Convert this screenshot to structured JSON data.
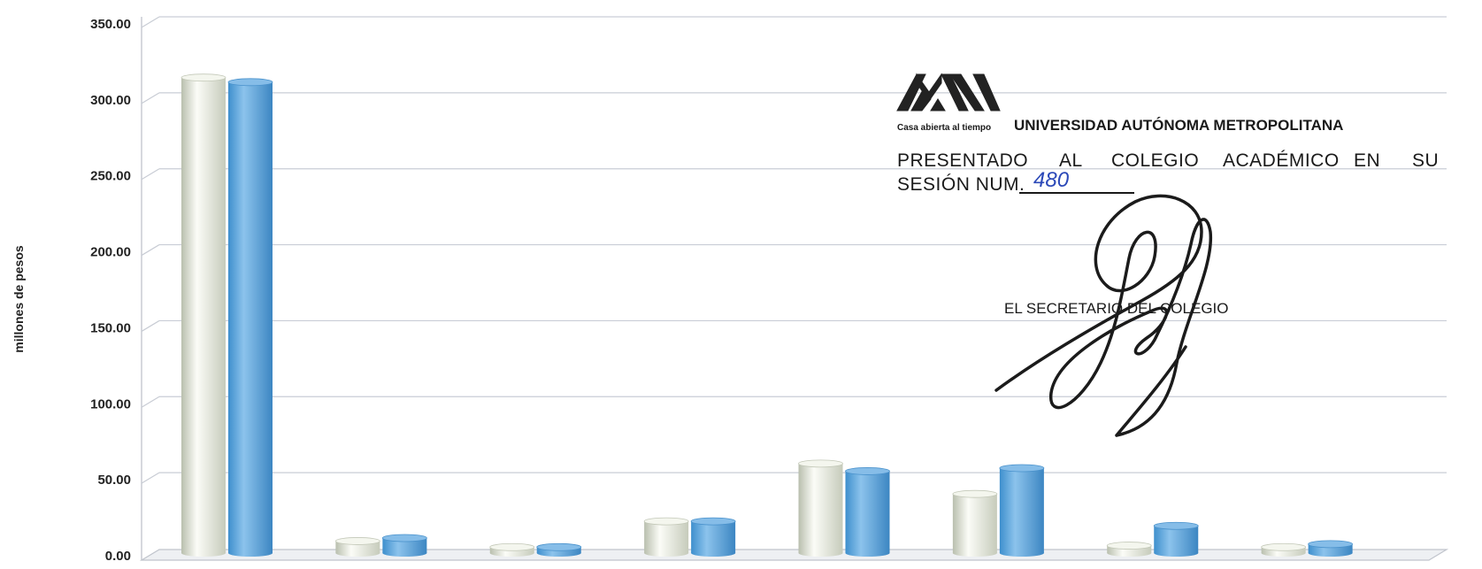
{
  "chart_data": {
    "type": "bar",
    "ylabel": "millones de pesos",
    "ylim": [
      0,
      350
    ],
    "yticks": [
      "0.00",
      "50.00",
      "100.00",
      "150.00",
      "200.00",
      "250.00",
      "300.00",
      "350.00"
    ],
    "categories": [
      "",
      "",
      "",
      "",
      "",
      "",
      "",
      ""
    ],
    "series": [
      {
        "values": [
          310,
          5,
          1,
          18,
          56,
          36,
          2,
          1
        ],
        "color": "#e8ece0"
      },
      {
        "values": [
          307,
          7,
          1,
          18,
          51,
          53,
          15,
          3
        ],
        "color": "#5aa4dc"
      }
    ],
    "grid": true,
    "legend": "none"
  },
  "stamp": {
    "logo": "uam-logo",
    "tagline": "Casa abierta al tiempo",
    "university": "UNIVERSIDAD AUTÓNOMA METROPOLITANA",
    "presented_words": [
      "PRESENTADO",
      "AL",
      "COLEGIO",
      "ACADÉMICO",
      "EN",
      "SU"
    ],
    "session_label": "SESIÓN NUM.",
    "session_number": "480",
    "secretary": "EL SECRETARIO DEL COLEGIO"
  }
}
